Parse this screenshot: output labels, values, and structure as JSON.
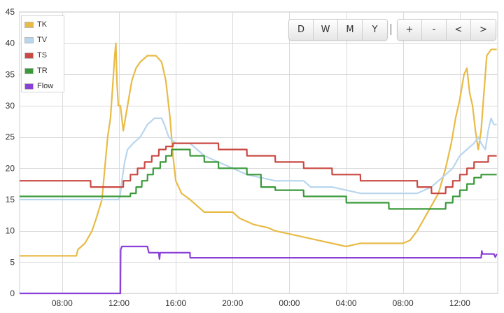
{
  "chart_data": {
    "type": "line",
    "title": "",
    "xlabel": "",
    "ylabel": "",
    "ylim": [
      0,
      45
    ],
    "yticks": [
      0,
      5,
      10,
      15,
      20,
      25,
      30,
      35,
      40,
      45
    ],
    "xlim": [
      "05:00",
      "14:40 (next day)"
    ],
    "xticks": [
      "08:00",
      "12:00",
      "16:00",
      "20:00",
      "00:00",
      "04:00",
      "08:00",
      "12:00"
    ],
    "grid": true,
    "legend_position": "top-left",
    "x_unit": "hours from 05:00",
    "series": [
      {
        "name": "TK",
        "color": "#e8bb47",
        "points": [
          [
            0,
            6
          ],
          [
            4,
            6
          ],
          [
            4.1,
            7
          ],
          [
            4.6,
            8
          ],
          [
            5.1,
            10
          ],
          [
            5.4,
            12
          ],
          [
            5.6,
            13.5
          ],
          [
            5.8,
            15
          ],
          [
            6.0,
            20
          ],
          [
            6.2,
            25
          ],
          [
            6.4,
            28
          ],
          [
            6.55,
            33
          ],
          [
            6.7,
            38
          ],
          [
            6.78,
            40
          ],
          [
            6.85,
            34
          ],
          [
            6.95,
            30
          ],
          [
            7.1,
            30
          ],
          [
            7.2,
            28
          ],
          [
            7.3,
            26
          ],
          [
            7.45,
            28
          ],
          [
            7.6,
            30
          ],
          [
            7.9,
            34
          ],
          [
            8.2,
            36
          ],
          [
            8.5,
            37
          ],
          [
            9.0,
            38
          ],
          [
            9.6,
            38
          ],
          [
            10.0,
            37
          ],
          [
            10.3,
            34
          ],
          [
            10.6,
            28
          ],
          [
            10.8,
            22
          ],
          [
            11.0,
            18
          ],
          [
            11.4,
            16
          ],
          [
            12.0,
            15
          ],
          [
            12.5,
            14
          ],
          [
            13,
            13
          ],
          [
            15,
            13
          ],
          [
            15.5,
            12
          ],
          [
            16,
            11.5
          ],
          [
            16.5,
            11
          ],
          [
            17.5,
            10.5
          ],
          [
            18,
            10
          ],
          [
            19,
            9.5
          ],
          [
            20,
            9
          ],
          [
            21,
            8.5
          ],
          [
            22,
            8
          ],
          [
            23,
            7.5
          ],
          [
            24,
            8
          ],
          [
            25,
            8
          ],
          [
            26,
            8
          ],
          [
            27,
            8
          ],
          [
            27.5,
            8.5
          ],
          [
            28,
            10
          ],
          [
            28.5,
            12
          ],
          [
            29,
            14
          ],
          [
            29.5,
            16
          ],
          [
            30,
            20
          ],
          [
            30.4,
            24
          ],
          [
            30.7,
            28
          ],
          [
            31,
            31
          ],
          [
            31.3,
            35
          ],
          [
            31.5,
            36
          ],
          [
            31.7,
            32
          ],
          [
            31.9,
            30
          ],
          [
            32.1,
            26
          ],
          [
            32.3,
            23
          ],
          [
            32.5,
            26
          ],
          [
            32.7,
            32
          ],
          [
            32.9,
            38
          ],
          [
            33.2,
            39
          ],
          [
            33.6,
            39
          ]
        ]
      },
      {
        "name": "TV",
        "color": "#b8d6ee",
        "points": [
          [
            0,
            15
          ],
          [
            7,
            15
          ],
          [
            7.1,
            16
          ],
          [
            7.2,
            18
          ],
          [
            7.4,
            21
          ],
          [
            7.6,
            23
          ],
          [
            8.0,
            24
          ],
          [
            8.5,
            25
          ],
          [
            9.0,
            27
          ],
          [
            9.5,
            28
          ],
          [
            10.0,
            28
          ],
          [
            10.2,
            27
          ],
          [
            10.5,
            25
          ],
          [
            11,
            24
          ],
          [
            12,
            24
          ],
          [
            12.5,
            23
          ],
          [
            13,
            22
          ],
          [
            14,
            21
          ],
          [
            15,
            20
          ],
          [
            16,
            19
          ],
          [
            17,
            18.5
          ],
          [
            18,
            18
          ],
          [
            19,
            18
          ],
          [
            20,
            18
          ],
          [
            20.5,
            17
          ],
          [
            21,
            17
          ],
          [
            22,
            17
          ],
          [
            23,
            16.5
          ],
          [
            24,
            16
          ],
          [
            25,
            16
          ],
          [
            26,
            16
          ],
          [
            27,
            16
          ],
          [
            28,
            16
          ],
          [
            28.5,
            16.5
          ],
          [
            29,
            17
          ],
          [
            29.5,
            18
          ],
          [
            30,
            19
          ],
          [
            30.5,
            20
          ],
          [
            31,
            22
          ],
          [
            31.5,
            23
          ],
          [
            32,
            24
          ],
          [
            32.3,
            25
          ],
          [
            32.5,
            24
          ],
          [
            32.8,
            23
          ],
          [
            33.0,
            26
          ],
          [
            33.2,
            28
          ],
          [
            33.4,
            27
          ],
          [
            33.6,
            27
          ]
        ]
      },
      {
        "name": "TS",
        "color": "#c94a43",
        "points": [
          [
            0,
            18
          ],
          [
            5,
            18
          ],
          [
            5.01,
            17
          ],
          [
            7.3,
            17
          ],
          [
            7.31,
            18
          ],
          [
            7.8,
            18
          ],
          [
            7.81,
            19
          ],
          [
            8.3,
            19
          ],
          [
            8.31,
            20
          ],
          [
            8.8,
            20
          ],
          [
            8.81,
            21
          ],
          [
            9.3,
            21
          ],
          [
            9.31,
            22
          ],
          [
            9.8,
            22
          ],
          [
            9.81,
            23
          ],
          [
            10.3,
            23
          ],
          [
            10.31,
            23.5
          ],
          [
            10.8,
            23.5
          ],
          [
            10.81,
            24
          ],
          [
            14,
            24
          ],
          [
            14.01,
            23
          ],
          [
            16,
            23
          ],
          [
            16.01,
            22
          ],
          [
            18,
            22
          ],
          [
            18.01,
            21
          ],
          [
            20,
            21
          ],
          [
            20.01,
            20
          ],
          [
            22,
            20
          ],
          [
            22.01,
            19
          ],
          [
            24,
            19
          ],
          [
            24.01,
            18
          ],
          [
            28,
            18
          ],
          [
            28.01,
            17
          ],
          [
            29,
            17
          ],
          [
            29.01,
            16
          ],
          [
            30,
            16
          ],
          [
            30.01,
            17
          ],
          [
            30.5,
            17
          ],
          [
            30.51,
            18
          ],
          [
            31,
            18
          ],
          [
            31.01,
            19
          ],
          [
            31.5,
            19
          ],
          [
            31.51,
            20
          ],
          [
            32,
            20
          ],
          [
            32.01,
            21
          ],
          [
            33,
            21
          ],
          [
            33.01,
            22
          ],
          [
            33.6,
            22
          ]
        ]
      },
      {
        "name": "TR",
        "color": "#3a9a3a",
        "points": [
          [
            0,
            15.5
          ],
          [
            7.8,
            15.5
          ],
          [
            7.81,
            16
          ],
          [
            8.2,
            16
          ],
          [
            8.21,
            17
          ],
          [
            8.6,
            17
          ],
          [
            8.61,
            18
          ],
          [
            9.0,
            18
          ],
          [
            9.01,
            19
          ],
          [
            9.4,
            19
          ],
          [
            9.41,
            20
          ],
          [
            9.9,
            20
          ],
          [
            9.91,
            21
          ],
          [
            10.3,
            21
          ],
          [
            10.31,
            22
          ],
          [
            10.7,
            22
          ],
          [
            10.71,
            23
          ],
          [
            12,
            23
          ],
          [
            12.01,
            22
          ],
          [
            13,
            22
          ],
          [
            13.01,
            21
          ],
          [
            14,
            21
          ],
          [
            14.01,
            20
          ],
          [
            16,
            20
          ],
          [
            16.01,
            19
          ],
          [
            17,
            19
          ],
          [
            17.01,
            17
          ],
          [
            18,
            17
          ],
          [
            18.01,
            16.5
          ],
          [
            20,
            16.5
          ],
          [
            20.01,
            15.5
          ],
          [
            23,
            15.5
          ],
          [
            23.01,
            14.5
          ],
          [
            26,
            14.5
          ],
          [
            26.01,
            13.5
          ],
          [
            30,
            13.5
          ],
          [
            30.01,
            14.5
          ],
          [
            30.5,
            14.5
          ],
          [
            30.51,
            15.5
          ],
          [
            31,
            15.5
          ],
          [
            31.01,
            16.5
          ],
          [
            31.5,
            16.5
          ],
          [
            31.51,
            17.5
          ],
          [
            32,
            17.5
          ],
          [
            32.01,
            18.5
          ],
          [
            32.5,
            18.5
          ],
          [
            32.51,
            19
          ],
          [
            33.6,
            19
          ]
        ]
      },
      {
        "name": "Flow",
        "color": "#8a3fd6",
        "points": [
          [
            0,
            0
          ],
          [
            7.1,
            0
          ],
          [
            7.12,
            7
          ],
          [
            7.2,
            7.5
          ],
          [
            9,
            7.5
          ],
          [
            9.1,
            6.5
          ],
          [
            9.8,
            6.5
          ],
          [
            9.85,
            5.5
          ],
          [
            9.9,
            6.5
          ],
          [
            12,
            6.5
          ],
          [
            12.01,
            5.7
          ],
          [
            32.5,
            5.7
          ],
          [
            32.55,
            6.8
          ],
          [
            32.6,
            6.3
          ],
          [
            33.4,
            6.3
          ],
          [
            33.5,
            5.8
          ],
          [
            33.6,
            6.3
          ]
        ]
      }
    ]
  },
  "toolbar": {
    "range_buttons": [
      "D",
      "W",
      "M",
      "Y"
    ],
    "separator": "|",
    "nav_buttons": [
      "+",
      "-",
      "<",
      ">"
    ]
  }
}
